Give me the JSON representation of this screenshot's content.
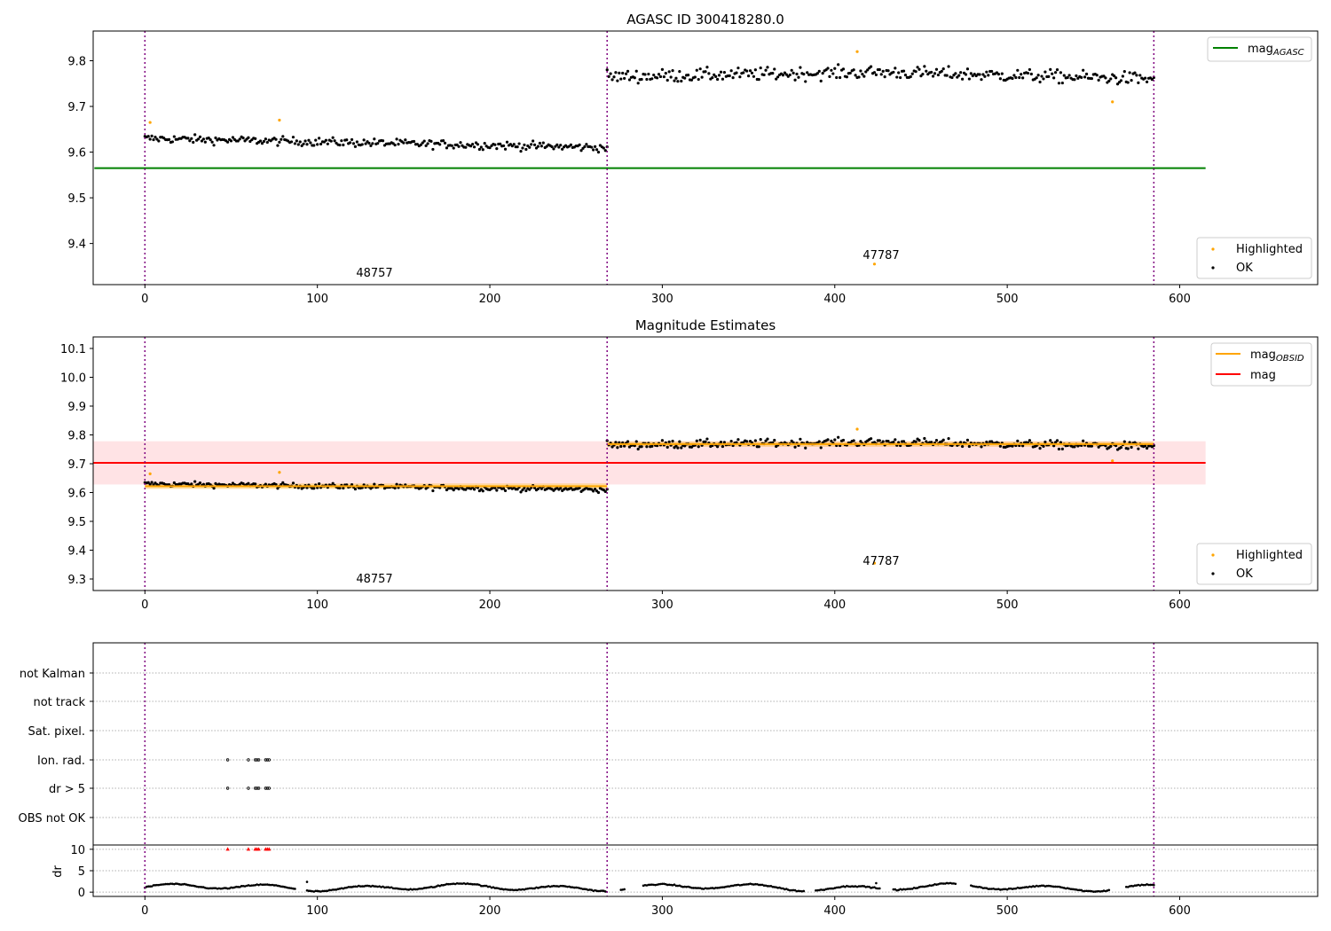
{
  "colors": {
    "ok": "#000000",
    "highlighted": "#ffa500",
    "agasc_mag": "#008000",
    "obsid_mag": "#ffa500",
    "mag": "#ff0000",
    "mag_band": "#ffc0c6",
    "boundary": "#800080",
    "flag_marker": "#ff0000",
    "grid": "#b0b0b0"
  },
  "chart_data": [
    {
      "type": "scatter",
      "title": "AGASC ID 300418280.0",
      "xlabel": "",
      "ylabel": "",
      "xlim": [
        -30,
        680
      ],
      "ylim": [
        9.31,
        9.865
      ],
      "xticks": [
        "0",
        "100",
        "200",
        "300",
        "400",
        "500",
        "600"
      ],
      "yticks": [
        "9.4",
        "9.5",
        "9.6",
        "9.7",
        "9.8"
      ],
      "grid": false,
      "legend_upper": {
        "position": "top-right",
        "entries": [
          "mag",
          "AGASC"
        ]
      },
      "legend_lower": {
        "position": "bottom-right",
        "entries": [
          "Highlighted",
          "OK"
        ]
      },
      "lines": [
        {
          "name": "mag AGASC",
          "y": 9.565,
          "x": [
            0,
            615
          ]
        }
      ],
      "vlines": [
        0,
        268,
        585
      ],
      "annotations": [
        {
          "text": "48757",
          "x": 134,
          "y": 9.33
        },
        {
          "text": "47787",
          "x": 427,
          "y": 9.37
        }
      ],
      "segments": [
        {
          "x": [
            0,
            268
          ],
          "base": [
            9.63,
            9.62,
            9.61
          ],
          "noise": 0.009
        },
        {
          "x": [
            268,
            585
          ],
          "base": [
            9.765,
            9.775,
            9.76
          ],
          "noise": 0.014
        }
      ],
      "highlighted": [
        {
          "x": 3,
          "y": 9.665
        },
        {
          "x": 78,
          "y": 9.67
        },
        {
          "x": 413,
          "y": 9.82
        },
        {
          "x": 423,
          "y": 9.355
        },
        {
          "x": 561,
          "y": 9.71
        }
      ]
    },
    {
      "type": "scatter",
      "title": "Magnitude Estimates",
      "xlabel": "",
      "ylabel": "",
      "xlim": [
        -30,
        680
      ],
      "ylim": [
        9.26,
        10.14
      ],
      "xticks": [
        "0",
        "100",
        "200",
        "300",
        "400",
        "500",
        "600"
      ],
      "yticks": [
        "9.3",
        "9.4",
        "9.5",
        "9.6",
        "9.7",
        "9.8",
        "9.9",
        "10.0",
        "10.1"
      ],
      "grid": false,
      "legend_upper": {
        "position": "top-right",
        "entries": [
          "mag",
          "OBSID",
          "mag"
        ]
      },
      "legend_lower": {
        "position": "bottom-right",
        "entries": [
          "Highlighted",
          "OK"
        ]
      },
      "lines": [
        {
          "name": "mag",
          "y": 9.703,
          "x": [
            0,
            615
          ],
          "band": [
            9.628,
            9.778
          ]
        },
        {
          "name": "mag OBSID",
          "steps": [
            {
              "x": [
                0,
                268
              ],
              "y": 9.622
            },
            {
              "x": [
                268,
                585
              ],
              "y": 9.768
            }
          ]
        }
      ],
      "vlines": [
        0,
        268,
        585
      ],
      "annotations": [
        {
          "text": "48757",
          "x": 134,
          "y": 9.29
        },
        {
          "text": "47787",
          "x": 427,
          "y": 9.36
        }
      ]
    },
    {
      "type": "scatter",
      "title": "",
      "xlabel": "",
      "ylabel": "dr",
      "xlim": [
        -30,
        680
      ],
      "xticks": [
        "0",
        "100",
        "200",
        "300",
        "400",
        "500",
        "600"
      ],
      "flag_labels": [
        "not Kalman",
        "not track",
        "Sat. pixel.",
        "Ion. rad.",
        "dr > 5",
        "OBS not OK"
      ],
      "flagged_x": [
        48,
        60,
        64,
        65,
        66,
        70,
        71,
        72
      ],
      "flagged_rows": [
        "Ion. rad.",
        "dr > 5"
      ],
      "dr_yticks": [
        "0",
        "5",
        "10"
      ],
      "dr_ylim": [
        -1,
        11
      ],
      "dr_gaps": [
        [
          88,
          93
        ],
        [
          268,
          275
        ],
        [
          279,
          288
        ],
        [
          383,
          388
        ],
        [
          427,
          433
        ],
        [
          471,
          478
        ],
        [
          560,
          568
        ]
      ],
      "dr_outliers": [
        {
          "x": 94,
          "y": 2.4
        },
        {
          "x": 424,
          "y": 2.1
        }
      ]
    }
  ]
}
